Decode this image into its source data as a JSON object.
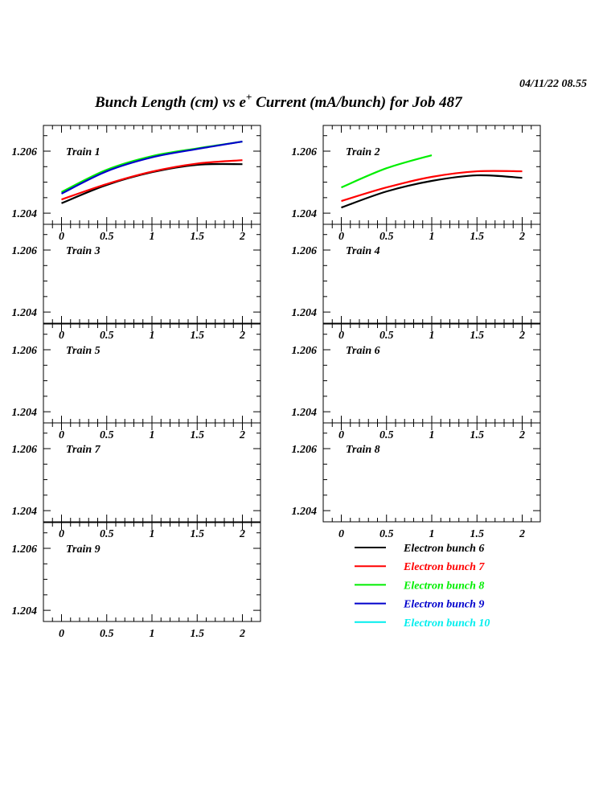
{
  "chart_data": {
    "type": "line",
    "title": "Bunch Length (cm) vs e",
    "title_sup": "+",
    "title_rest": " Current (mA/bunch) for Job 487",
    "timestamp": "04/11/22   08.55",
    "xlim": [
      -0.2,
      2.2
    ],
    "ylim": [
      1.20364,
      1.20683
    ],
    "x_ticks": [
      0,
      0.5,
      1,
      1.5,
      2
    ],
    "x_tick_labels": [
      "0",
      "0.5",
      "1",
      "1.5",
      "2"
    ],
    "y_ticks": [
      1.204,
      1.206
    ],
    "y_tick_labels": [
      "1.204",
      "1.206"
    ],
    "legend": [
      {
        "name": "Electron bunch 6",
        "color": "#000000"
      },
      {
        "name": "Electron bunch 7",
        "color": "#ff0000"
      },
      {
        "name": "Electron bunch 8",
        "color": "#00ee00"
      },
      {
        "name": "Electron bunch 9",
        "color": "#0000cc"
      },
      {
        "name": "Electron bunch 10",
        "color": "#00eeee"
      }
    ],
    "panels": [
      {
        "label": "Train 1",
        "series": [
          {
            "name": "Electron bunch 6",
            "x": [
              0,
              0.5,
              1,
              1.5,
              2
            ],
            "y": [
              1.20432,
              1.20491,
              1.20532,
              1.20556,
              1.20558
            ]
          },
          {
            "name": "Electron bunch 7",
            "x": [
              0,
              0.5,
              1,
              1.5,
              2
            ],
            "y": [
              1.20444,
              1.20494,
              1.20534,
              1.2056,
              1.20571
            ]
          },
          {
            "name": "Electron bunch 8",
            "x": [
              0,
              0.5,
              1,
              1.5,
              2
            ],
            "y": [
              1.20468,
              1.2054,
              1.20584,
              1.20609,
              1.20631
            ]
          },
          {
            "name": "Electron bunch 9",
            "x": [
              0,
              0.5,
              1,
              1.5,
              2
            ],
            "y": [
              1.20463,
              1.20535,
              1.2058,
              1.20607,
              1.20631
            ]
          }
        ]
      },
      {
        "label": "Train 2",
        "series": [
          {
            "name": "Electron bunch 6",
            "x": [
              0,
              0.5,
              1,
              1.5,
              2
            ],
            "y": [
              1.20418,
              1.2047,
              1.20504,
              1.20522,
              1.20514
            ]
          },
          {
            "name": "Electron bunch 7",
            "x": [
              0,
              0.5,
              1,
              1.5,
              2
            ],
            "y": [
              1.20439,
              1.20483,
              1.20517,
              1.20535,
              1.20535
            ]
          },
          {
            "name": "Electron bunch 8",
            "x": [
              0,
              0.5,
              1
            ],
            "y": [
              1.20483,
              1.20545,
              1.20587
            ]
          }
        ]
      },
      {
        "label": "Train 3",
        "series": []
      },
      {
        "label": "Train 4",
        "series": []
      },
      {
        "label": "Train 5",
        "series": []
      },
      {
        "label": "Train 6",
        "series": []
      },
      {
        "label": "Train 7",
        "series": []
      },
      {
        "label": "Train 8",
        "series": []
      },
      {
        "label": "Train 9",
        "series": []
      }
    ]
  }
}
